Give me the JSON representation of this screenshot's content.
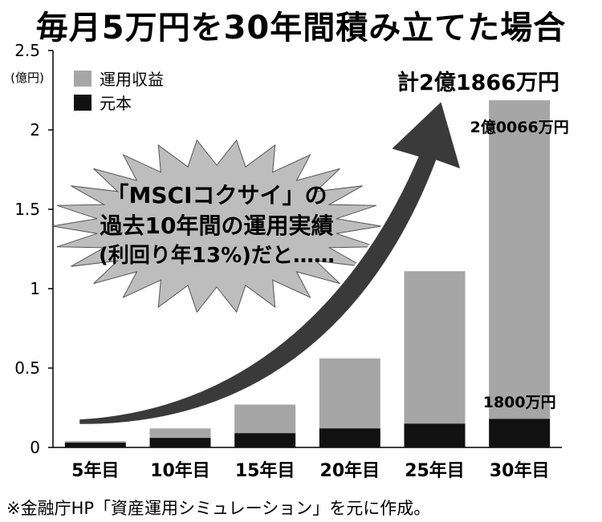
{
  "title": "毎月5万円を30年間積み立てた場合",
  "source_note": "※金融庁HP「資産運用シミュレーション」を元に作成。",
  "callout": {
    "line1": "「MSCIコクサイ」の",
    "line2": "過去10年間の運用実績",
    "line3": "(利回り年13%)だと……"
  },
  "total_label": "計2億1866万円",
  "colors": {
    "returns": "#a6a6a6",
    "principal": "#111111",
    "arrow": "#3a3a3a",
    "burst": "#bdbdbd"
  },
  "chart_data": {
    "type": "bar",
    "stacked": true,
    "categories": [
      "5年目",
      "10年目",
      "15年目",
      "20年目",
      "25年目",
      "30年目"
    ],
    "series": [
      {
        "name": "元本",
        "color": "#111111",
        "values": [
          0.03,
          0.06,
          0.09,
          0.12,
          0.15,
          0.18
        ]
      },
      {
        "name": "運用収益",
        "color": "#a6a6a6",
        "values": [
          0.01,
          0.06,
          0.18,
          0.44,
          0.96,
          2.0066
        ]
      }
    ],
    "ylabel": "(億円)",
    "ylim": [
      0,
      2.5
    ],
    "yticks": [
      0,
      0.5,
      1,
      1.5,
      2,
      2.5
    ],
    "ytick_labels": [
      "0",
      "0.5",
      "1",
      "1.5",
      "2",
      "2.5"
    ],
    "legend_position": "top-left",
    "annotations": [
      {
        "category": "30年目",
        "series": "運用収益",
        "text": "2億0066万円"
      },
      {
        "category": "30年目",
        "series": "元本",
        "text": "1800万円"
      }
    ],
    "grid": false
  }
}
